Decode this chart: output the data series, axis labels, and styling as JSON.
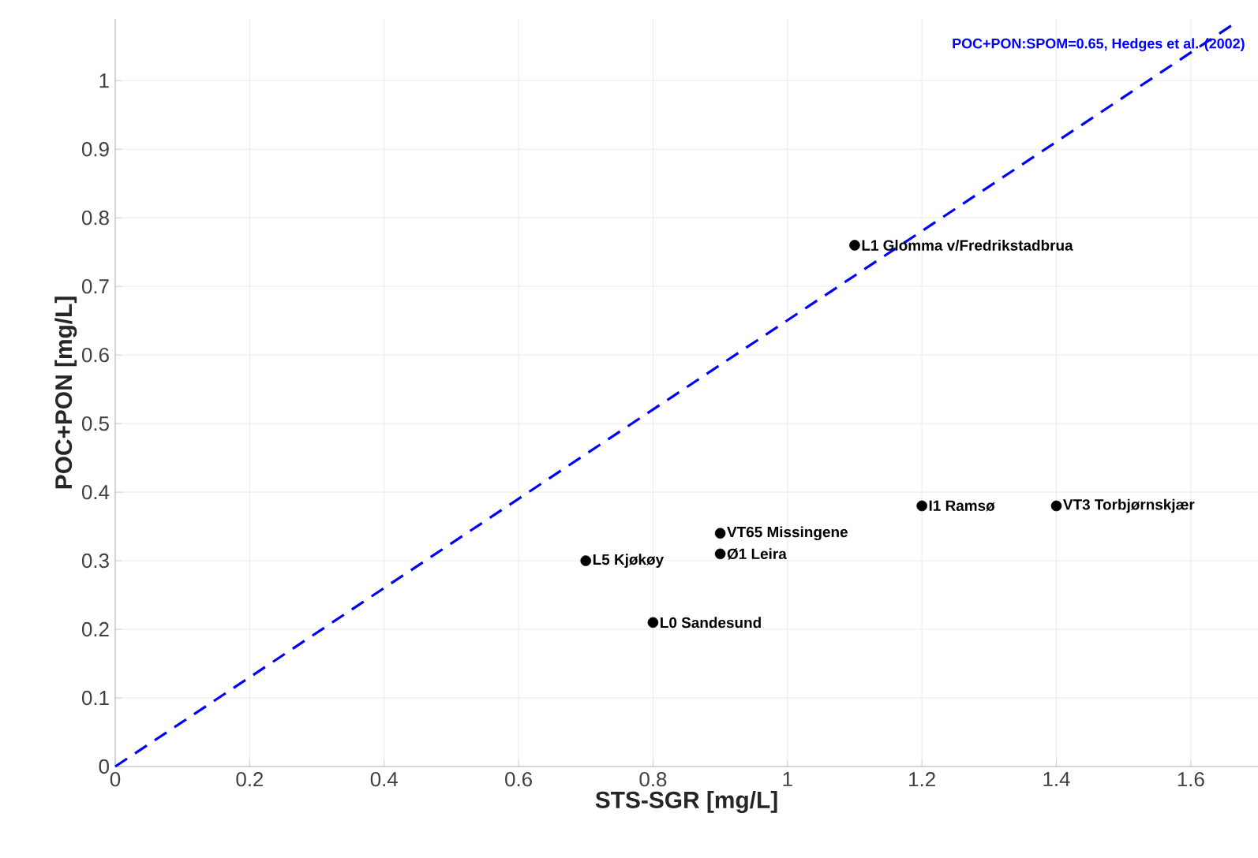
{
  "chart_data": {
    "type": "scatter",
    "xlabel": "STS-SGR [mg/L]",
    "ylabel": "POC+PON [mg/L]",
    "xlim": [
      0,
      1.7
    ],
    "ylim": [
      0,
      1.09
    ],
    "xticks": [
      0,
      0.2,
      0.4,
      0.6,
      0.8,
      1,
      1.2,
      1.4,
      1.6
    ],
    "yticks": [
      0,
      0.1,
      0.2,
      0.3,
      0.4,
      0.5,
      0.6,
      0.7,
      0.8,
      0.9,
      1
    ],
    "grid": true,
    "marker": "circle",
    "series": [
      {
        "type": "scatter",
        "color": "#000000",
        "x": [
          1.1,
          1.2,
          1.4,
          0.9,
          0.9,
          0.7,
          0.8
        ],
        "values": [
          0.76,
          0.38,
          0.38,
          0.34,
          0.31,
          0.3,
          0.21
        ]
      },
      {
        "type": "line",
        "color": "#0000ff",
        "line_style": "dashed",
        "marker": "none",
        "x": [
          0,
          1.66
        ],
        "values": [
          0,
          1.08
        ]
      }
    ],
    "annotations": [
      "POC+PON:SPOM=0.65, Hedges et al. (2002)",
      {
        "text": "L1 Glomma v/Fredrikstadbrua",
        "x": 1.1,
        "y": 0.76
      },
      {
        "text": "I1 Ramsø",
        "x": 1.2,
        "y": 0.38
      },
      {
        "text": "VT3 Torbjørnskjær",
        "x": 1.4,
        "y": 0.38
      },
      {
        "text": "VT65 Missingene",
        "x": 0.9,
        "y": 0.34
      },
      {
        "text": "Ø1 Leira",
        "x": 0.9,
        "y": 0.31
      },
      {
        "text": "L5 Kjøkøy",
        "x": 0.7,
        "y": 0.3
      },
      {
        "text": "L0 Sandesund",
        "x": 0.8,
        "y": 0.21
      }
    ]
  }
}
